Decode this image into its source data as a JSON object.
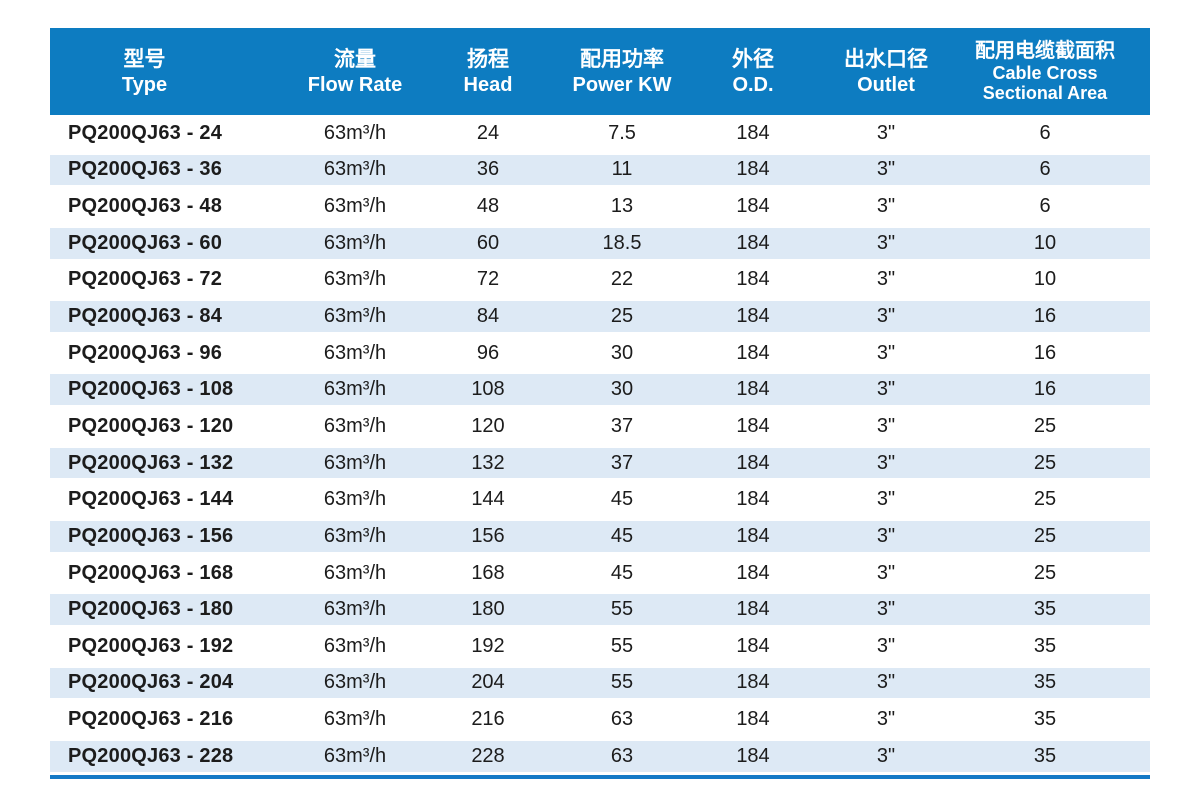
{
  "colors": {
    "header_bg": "#0d7cc1",
    "header_text": "#ffffff",
    "stripe_bg": "#dde9f5",
    "bottom_line": "#1379c6",
    "body_text": "#1c1c1c"
  },
  "table": {
    "columns": [
      {
        "zh": "型号",
        "en": "Type"
      },
      {
        "zh": "流量",
        "en": "Flow Rate"
      },
      {
        "zh": "扬程",
        "en": "Head"
      },
      {
        "zh": "配用功率",
        "en": "Power KW"
      },
      {
        "zh": "外径",
        "en": "O.D."
      },
      {
        "zh": "出水口径",
        "en": "Outlet"
      },
      {
        "zh": "配用电缆截面积",
        "en": "Cable Cross",
        "en2": "Sectional Area"
      }
    ],
    "rows": [
      [
        "PQ200QJ63 - 24",
        "63m³/h",
        "24",
        "7.5",
        "184",
        "3\"",
        "6"
      ],
      [
        "PQ200QJ63 - 36",
        "63m³/h",
        "36",
        "11",
        "184",
        "3\"",
        "6"
      ],
      [
        "PQ200QJ63 - 48",
        "63m³/h",
        "48",
        "13",
        "184",
        "3\"",
        "6"
      ],
      [
        "PQ200QJ63 - 60",
        "63m³/h",
        "60",
        "18.5",
        "184",
        "3\"",
        "10"
      ],
      [
        "PQ200QJ63 - 72",
        "63m³/h",
        "72",
        "22",
        "184",
        "3\"",
        "10"
      ],
      [
        "PQ200QJ63 - 84",
        "63m³/h",
        "84",
        "25",
        "184",
        "3\"",
        "16"
      ],
      [
        "PQ200QJ63 - 96",
        "63m³/h",
        "96",
        "30",
        "184",
        "3\"",
        "16"
      ],
      [
        "PQ200QJ63 - 108",
        "63m³/h",
        "108",
        "30",
        "184",
        "3\"",
        "16"
      ],
      [
        "PQ200QJ63 - 120",
        "63m³/h",
        "120",
        "37",
        "184",
        "3\"",
        "25"
      ],
      [
        "PQ200QJ63 - 132",
        "63m³/h",
        "132",
        "37",
        "184",
        "3\"",
        "25"
      ],
      [
        "PQ200QJ63 - 144",
        "63m³/h",
        "144",
        "45",
        "184",
        "3\"",
        "25"
      ],
      [
        "PQ200QJ63 - 156",
        "63m³/h",
        "156",
        "45",
        "184",
        "3\"",
        "25"
      ],
      [
        "PQ200QJ63 - 168",
        "63m³/h",
        "168",
        "45",
        "184",
        "3\"",
        "25"
      ],
      [
        "PQ200QJ63 - 180",
        "63m³/h",
        "180",
        "55",
        "184",
        "3\"",
        "35"
      ],
      [
        "PQ200QJ63 - 192",
        "63m³/h",
        "192",
        "55",
        "184",
        "3\"",
        "35"
      ],
      [
        "PQ200QJ63 - 204",
        "63m³/h",
        "204",
        "55",
        "184",
        "3\"",
        "35"
      ],
      [
        "PQ200QJ63 - 216",
        "63m³/h",
        "216",
        "63",
        "184",
        "3\"",
        "35"
      ],
      [
        "PQ200QJ63 - 228",
        "63m³/h",
        "228",
        "63",
        "184",
        "3\"",
        "35"
      ]
    ]
  }
}
